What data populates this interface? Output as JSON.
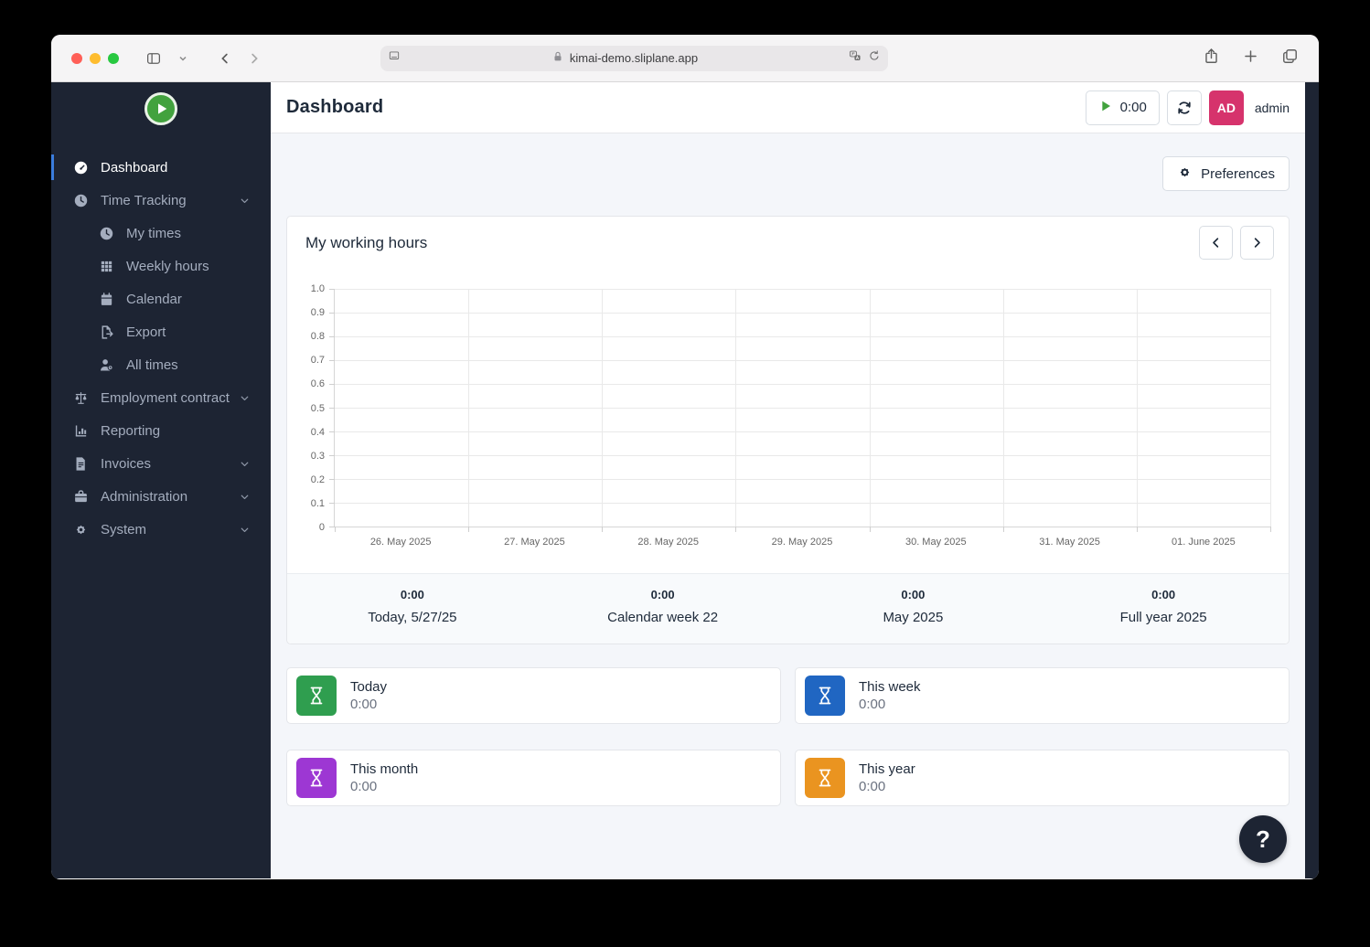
{
  "browser": {
    "url": "kimai-demo.sliplane.app",
    "traffic_lights": [
      "close",
      "minimize",
      "zoom"
    ]
  },
  "sidebar": {
    "items": [
      {
        "label": "Dashboard",
        "icon": "gauge-icon",
        "active": true,
        "child": false,
        "chevron": false
      },
      {
        "label": "Time Tracking",
        "icon": "clock-icon",
        "active": false,
        "child": false,
        "chevron": true
      },
      {
        "label": "My times",
        "icon": "clock-icon",
        "active": false,
        "child": true,
        "chevron": false
      },
      {
        "label": "Weekly hours",
        "icon": "grid-icon",
        "active": false,
        "child": true,
        "chevron": false
      },
      {
        "label": "Calendar",
        "icon": "calendar-icon",
        "active": false,
        "child": true,
        "chevron": false
      },
      {
        "label": "Export",
        "icon": "export-icon",
        "active": false,
        "child": true,
        "chevron": false
      },
      {
        "label": "All times",
        "icon": "users-icon",
        "active": false,
        "child": true,
        "chevron": false
      },
      {
        "label": "Employment contract",
        "icon": "scales-icon",
        "active": false,
        "child": false,
        "chevron": true
      },
      {
        "label": "Reporting",
        "icon": "report-icon",
        "active": false,
        "child": false,
        "chevron": false
      },
      {
        "label": "Invoices",
        "icon": "invoice-icon",
        "active": false,
        "child": false,
        "chevron": true
      },
      {
        "label": "Administration",
        "icon": "briefcase-icon",
        "active": false,
        "child": false,
        "chevron": true
      },
      {
        "label": "System",
        "icon": "gear-icon",
        "active": false,
        "child": false,
        "chevron": true
      }
    ]
  },
  "header": {
    "title": "Dashboard",
    "timer_value": "0:00",
    "user_initials": "AD",
    "user_name": "admin"
  },
  "toolbar": {
    "preferences_label": "Preferences"
  },
  "working_hours": {
    "title": "My working hours",
    "summary": [
      {
        "value": "0:00",
        "label": "Today, 5/27/25"
      },
      {
        "value": "0:00",
        "label": "Calendar week 22"
      },
      {
        "value": "0:00",
        "label": "May 2025"
      },
      {
        "value": "0:00",
        "label": "Full year 2025"
      }
    ]
  },
  "chart_data": {
    "type": "bar",
    "title": "My working hours",
    "categories": [
      "26. May 2025",
      "27. May 2025",
      "28. May 2025",
      "29. May 2025",
      "30. May 2025",
      "31. May 2025",
      "01. June 2025"
    ],
    "values": [
      0,
      0,
      0,
      0,
      0,
      0,
      0
    ],
    "xlabel": "",
    "ylabel": "",
    "ylim": [
      0,
      1.0
    ],
    "ytick_step": 0.1,
    "grid": true,
    "legend": false
  },
  "stat_cards": [
    {
      "label": "Today",
      "value": "0:00",
      "color": "#2f9e4f",
      "icon": "hourglass-icon"
    },
    {
      "label": "This week",
      "value": "0:00",
      "color": "#2066c2",
      "icon": "hourglass-icon"
    },
    {
      "label": "This month",
      "value": "0:00",
      "color": "#9d37d3",
      "icon": "hourglass-icon"
    },
    {
      "label": "This year",
      "value": "0:00",
      "color": "#ea9420",
      "icon": "hourglass-icon"
    }
  ],
  "help": {
    "label": "?"
  },
  "colors": {
    "sidebar_bg": "#1d2433",
    "active_indicator": "#3b7ddd",
    "avatar_bg": "#d6336c",
    "play_green": "#42a23e",
    "content_bg": "#f4f6fa"
  }
}
